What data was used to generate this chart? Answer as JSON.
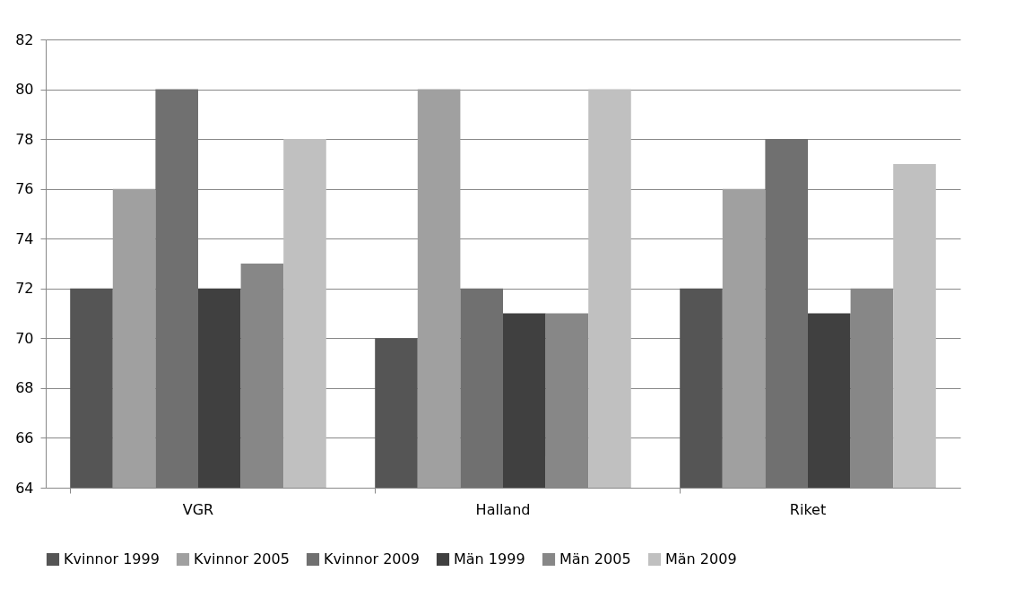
{
  "chart_data": {
    "type": "bar",
    "categories": [
      "VGR",
      "Halland",
      "Riket"
    ],
    "series": [
      {
        "name": "Kvinnor 1999",
        "color": "#555555",
        "values": [
          72,
          70,
          72
        ]
      },
      {
        "name": "Kvinnor 2005",
        "color": "#a0a0a0",
        "values": [
          76,
          80,
          76
        ]
      },
      {
        "name": "Kvinnor 2009",
        "color": "#707070",
        "values": [
          80,
          72,
          78
        ]
      },
      {
        "name": "Män 1999",
        "color": "#404040",
        "values": [
          72,
          71,
          71
        ]
      },
      {
        "name": "Män 2005",
        "color": "#878787",
        "values": [
          73,
          71,
          72
        ]
      },
      {
        "name": "Män 2009",
        "color": "#c0c0c0",
        "values": [
          78,
          80,
          77
        ]
      }
    ],
    "ylim": [
      64,
      82
    ],
    "yticks": [
      64,
      66,
      68,
      70,
      72,
      74,
      76,
      78,
      80,
      82
    ],
    "grid": "y",
    "legend": "bottom"
  }
}
